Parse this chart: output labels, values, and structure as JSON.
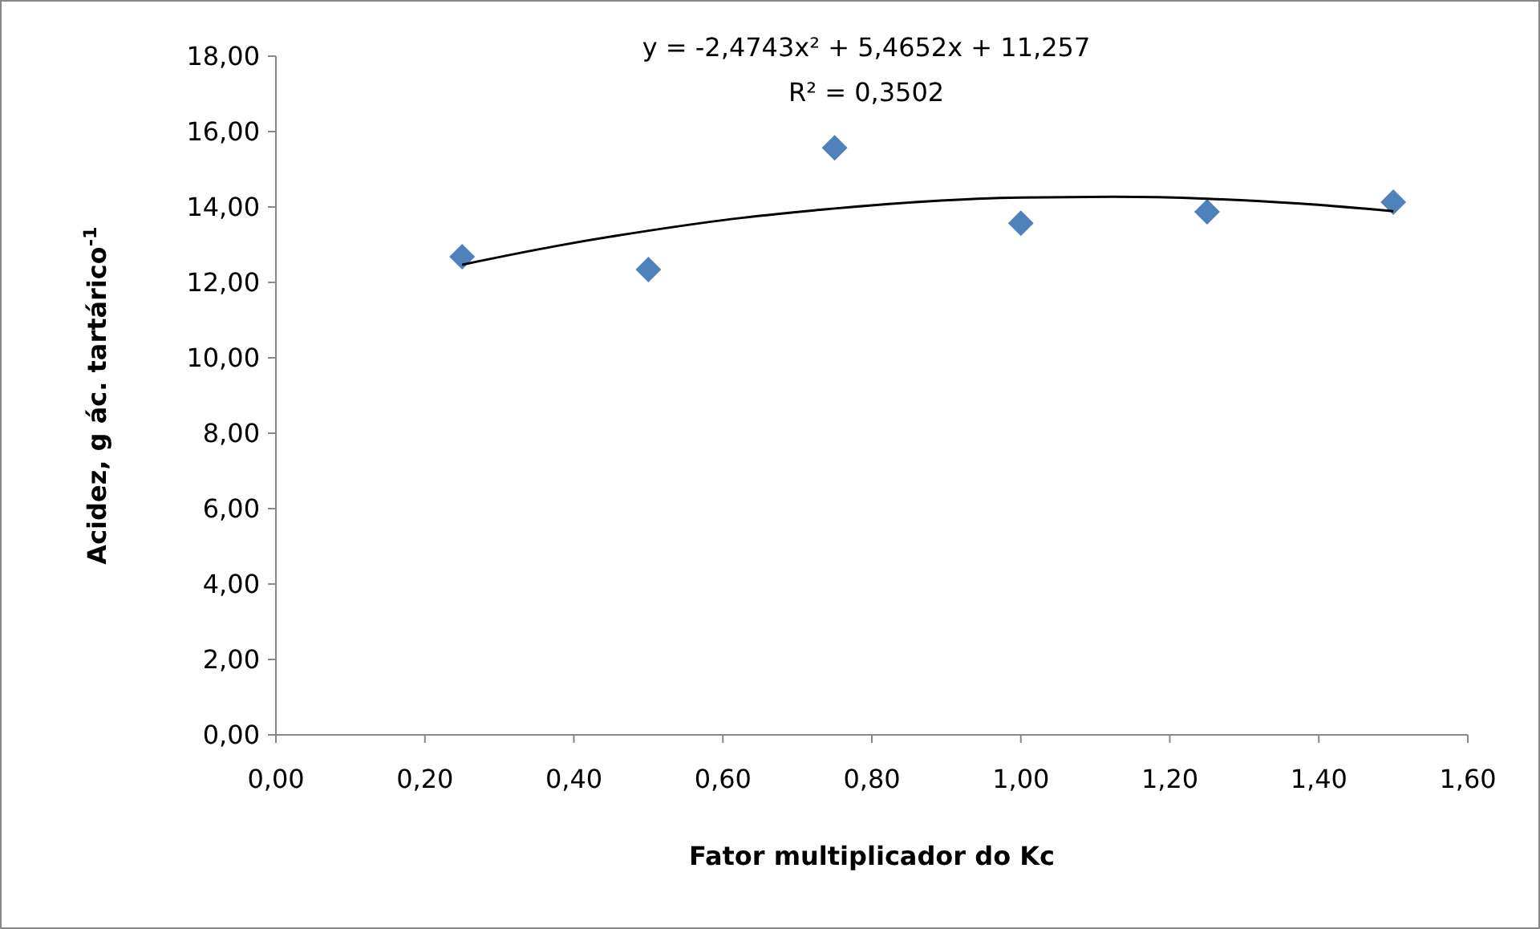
{
  "chart_data": {
    "type": "scatter",
    "xlabel": "Fator multiplicador  do Kc",
    "ylabel": "Acidez, g ác. tartárico$^{-1}$",
    "annotations": [
      "y = -2,4743x² + 5,4652x + 11,257",
      "R² = 0,3502"
    ],
    "xlim": [
      0,
      1.6
    ],
    "ylim": [
      0,
      18
    ],
    "xticks": [
      {
        "value": 0,
        "label": "0,00"
      },
      {
        "value": 0.2,
        "label": "0,20"
      },
      {
        "value": 0.4,
        "label": "0,40"
      },
      {
        "value": 0.6,
        "label": "0,60"
      },
      {
        "value": 0.8,
        "label": "0,80"
      },
      {
        "value": 1,
        "label": "1,00"
      },
      {
        "value": 1.2,
        "label": "1,20"
      },
      {
        "value": 1.4,
        "label": "1,40"
      },
      {
        "value": 1.6,
        "label": "1,60"
      }
    ],
    "yticks": [
      {
        "value": 0,
        "label": "0,00"
      },
      {
        "value": 2,
        "label": "2,00"
      },
      {
        "value": 4,
        "label": "4,00"
      },
      {
        "value": 6,
        "label": "6,00"
      },
      {
        "value": 8,
        "label": "8,00"
      },
      {
        "value": 10,
        "label": "10,00"
      },
      {
        "value": 12,
        "label": "12,00"
      },
      {
        "value": 14,
        "label": "14,00"
      },
      {
        "value": 16,
        "label": "16,00"
      },
      {
        "value": 18,
        "label": "18,00"
      }
    ],
    "grid": false,
    "marker": "diamond",
    "series": [
      {
        "color": "#4f81bd",
        "x": [
          0.25,
          0.5,
          0.75,
          1,
          1.25,
          1.5
        ],
        "values": [
          12.68,
          12.34,
          15.57,
          13.57,
          13.87,
          14.13
        ]
      },
      {
        "type": "line",
        "color": "#000000",
        "marker": "none",
        "x": [
          0.25,
          0.375,
          0.5,
          0.625,
          0.75,
          0.875,
          1,
          1.125,
          1.25,
          1.375,
          1.5
        ],
        "values": [
          12.47,
          12.96,
          13.37,
          13.71,
          13.96,
          14.15,
          14.25,
          14.27,
          14.22,
          14.09,
          13.89
        ]
      }
    ]
  }
}
